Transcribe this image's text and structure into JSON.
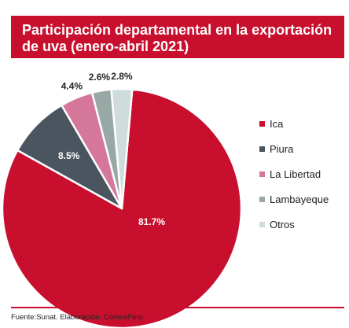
{
  "title": "Participación departamental en la exportación de uva (enero-abril 2021)",
  "footer": "Fuente:Sunat. Elaboración: ComexPerú.",
  "chart_data": {
    "type": "pie",
    "title": "Participación departamental en la exportación de uva (enero-abril 2021)",
    "legend_position": "right",
    "slices": [
      {
        "name": "Ica",
        "value": 81.7,
        "label": "81.7%",
        "color": "#c8102e"
      },
      {
        "name": "Piura",
        "value": 8.5,
        "label": "8.5%",
        "color": "#4a5560"
      },
      {
        "name": "La Libertad",
        "value": 4.4,
        "label": "4.4%",
        "color": "#d5769b"
      },
      {
        "name": "Lambayeque",
        "value": 2.6,
        "label": "2.6%",
        "color": "#98a8a5"
      },
      {
        "name": "Otros",
        "value": 2.8,
        "label": "2.8%",
        "color": "#cfdcdc"
      }
    ]
  }
}
